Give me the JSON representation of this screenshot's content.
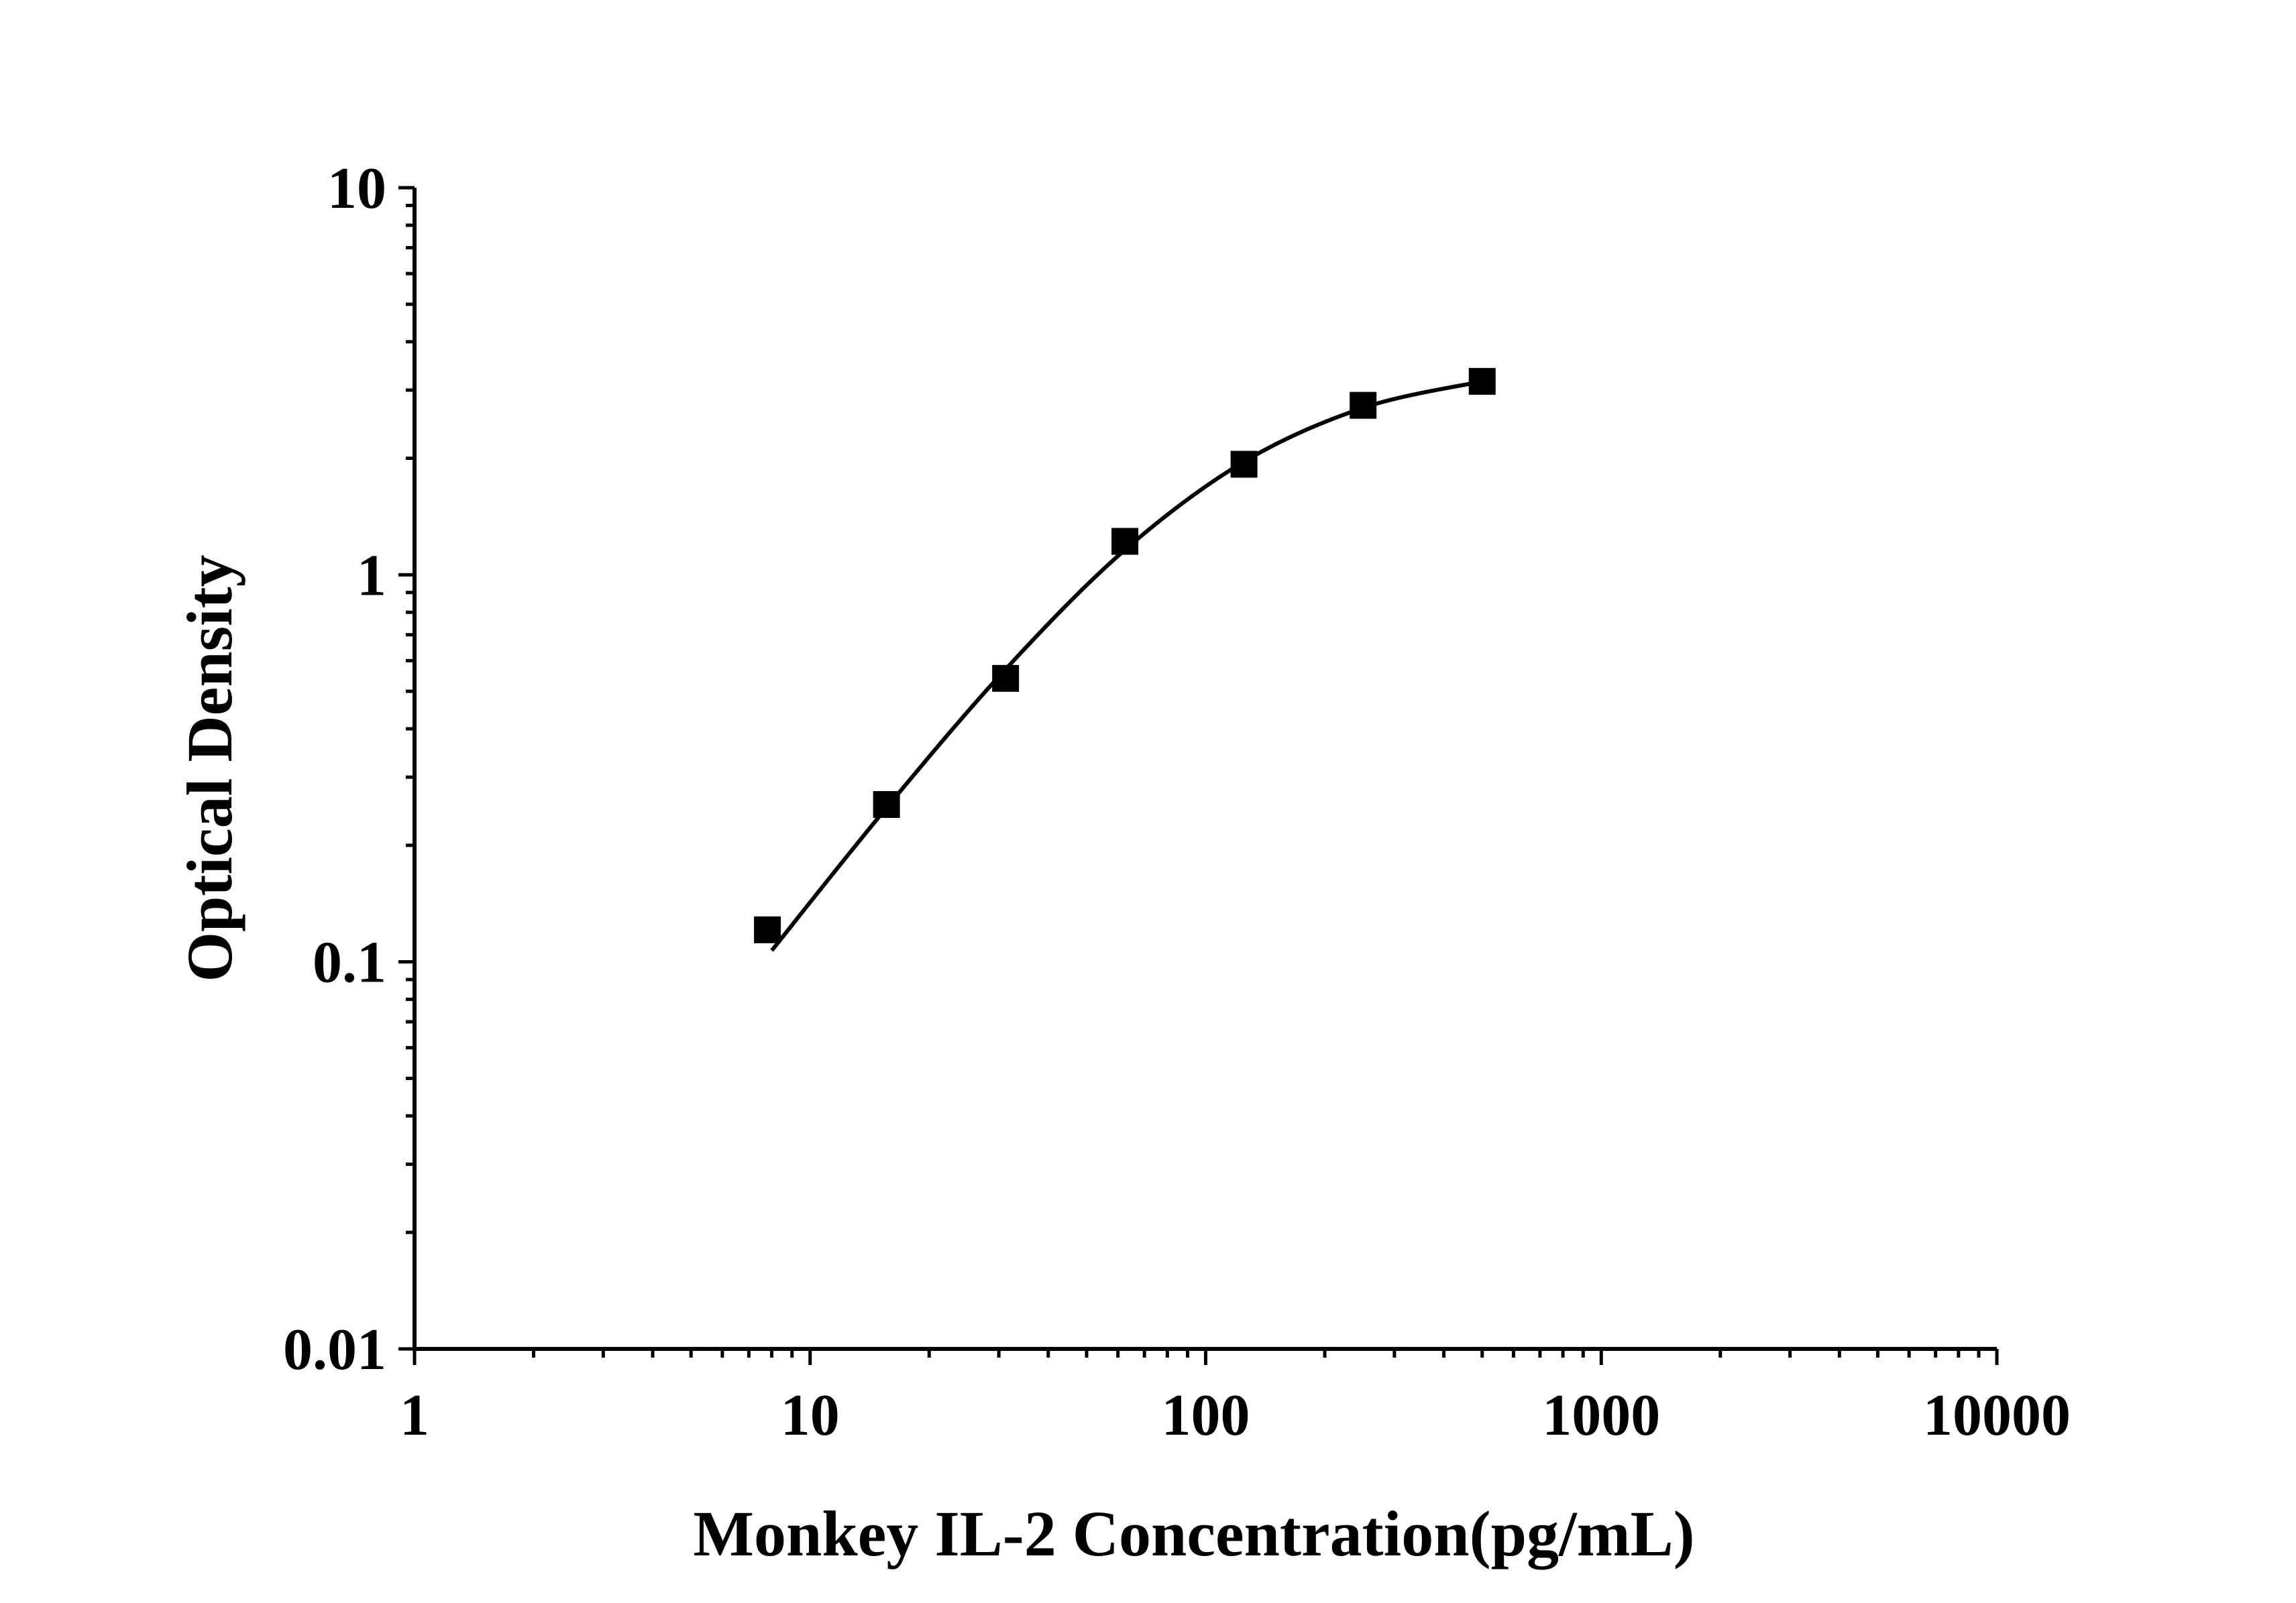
{
  "chart_data": {
    "type": "scatter",
    "xlabel": "Monkey IL-2 Concentration(pg/mL)",
    "ylabel": "Optical Density",
    "x_scale": "log",
    "y_scale": "log",
    "xlim": [
      1,
      10000
    ],
    "ylim": [
      0.01,
      10
    ],
    "x_ticks": [
      "1",
      "10",
      "100",
      "1000",
      "10000"
    ],
    "y_ticks": [
      "0.01",
      "0.1",
      "1",
      "10"
    ],
    "grid": false,
    "legend": "none",
    "series": [
      {
        "marker": "square",
        "color": "#000000",
        "points": [
          {
            "x": 7.8,
            "y": 0.121
          },
          {
            "x": 15.6,
            "y": 0.255
          },
          {
            "x": 31.2,
            "y": 0.54
          },
          {
            "x": 62.5,
            "y": 1.22
          },
          {
            "x": 125,
            "y": 1.93
          },
          {
            "x": 250,
            "y": 2.74
          },
          {
            "x": 500,
            "y": 3.16
          }
        ]
      }
    ],
    "fit_curve": {
      "color": "#000000",
      "points": [
        {
          "x": 8.0,
          "y": 0.107
        },
        {
          "x": 15.6,
          "y": 0.25
        },
        {
          "x": 31.2,
          "y": 0.57
        },
        {
          "x": 62.5,
          "y": 1.16
        },
        {
          "x": 125,
          "y": 1.96
        },
        {
          "x": 250,
          "y": 2.7
        },
        {
          "x": 500,
          "y": 3.16
        }
      ]
    }
  }
}
